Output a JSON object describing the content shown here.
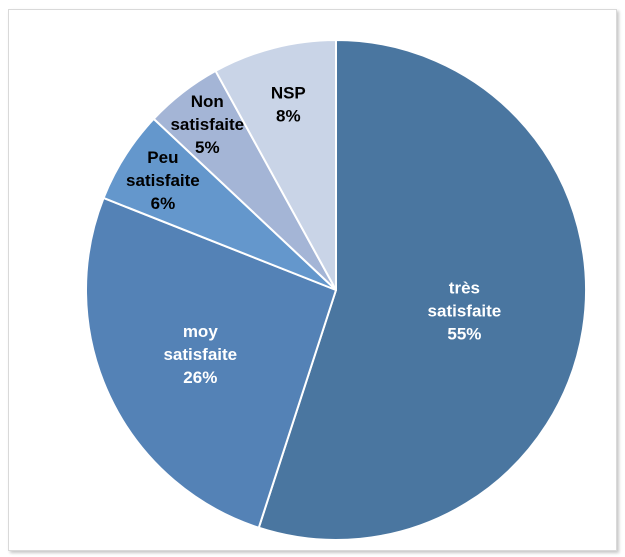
{
  "chart_data": {
    "type": "pie",
    "title": "",
    "start_angle_deg": 0,
    "direction": "clockwise",
    "slices": [
      {
        "label": "très satisfaite",
        "lines": [
          "très",
          "satisfaite",
          "55%"
        ],
        "value": 55,
        "color": "#4a76a0",
        "text_color": "#ffffff"
      },
      {
        "label": "moy satisfaite",
        "lines": [
          "moy",
          "satisfaite",
          "26%"
        ],
        "value": 26,
        "color": "#5482b6",
        "text_color": "#ffffff"
      },
      {
        "label": "Peu satisfaite",
        "lines": [
          "Peu",
          "satisfaite",
          "6%"
        ],
        "value": 6,
        "color": "#6497cc",
        "text_color": "#000000"
      },
      {
        "label": "Non satisfaite",
        "lines": [
          "Non",
          "satisfaite",
          "5%"
        ],
        "value": 5,
        "color": "#a4b5d6",
        "text_color": "#000000"
      },
      {
        "label": "NSP",
        "lines": [
          "NSP",
          "8%"
        ],
        "value": 8,
        "color": "#c9d4e7",
        "text_color": "#000000"
      }
    ]
  }
}
